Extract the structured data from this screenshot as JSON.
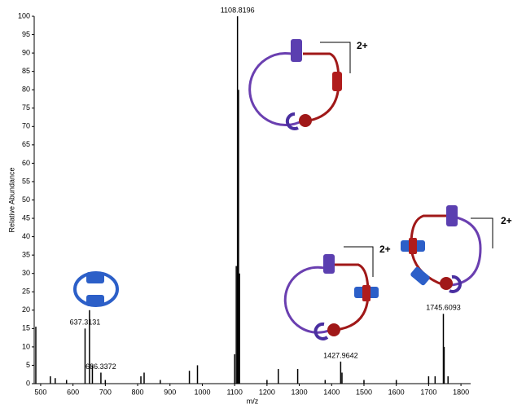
{
  "chart_data": {
    "type": "stick",
    "x_label": "m/z",
    "y_label": "Relative Abundance",
    "xlim": [
      480,
      1830
    ],
    "ylim": [
      0,
      100
    ],
    "xticks": [
      500,
      600,
      700,
      800,
      900,
      1000,
      1100,
      1200,
      1300,
      1400,
      1500,
      1600,
      1700,
      1800
    ],
    "yticks": [
      0,
      5,
      10,
      15,
      20,
      25,
      30,
      35,
      40,
      45,
      50,
      55,
      60,
      65,
      70,
      75,
      80,
      85,
      90,
      95,
      100
    ],
    "color": "#000000",
    "x": [
      485,
      530,
      545,
      580,
      637.3131,
      651,
      660,
      686.3372,
      700,
      810,
      820,
      870,
      960,
      985,
      1100,
      1105,
      1108.8196,
      1112,
      1115,
      1200,
      1235,
      1295,
      1380,
      1427.9642,
      1432,
      1500,
      1600,
      1700,
      1720,
      1745.6093,
      1748,
      1760
    ],
    "values": [
      15.5,
      2,
      1.5,
      1,
      15,
      20,
      5,
      3,
      1,
      2,
      3,
      1,
      3.5,
      5,
      8,
      32,
      100,
      80,
      30,
      1,
      4,
      4,
      1,
      6,
      3,
      1,
      1,
      2,
      2,
      19,
      10,
      2
    ],
    "annotations": [
      {
        "label": "637.3131",
        "x": 637.3131,
        "y": 15
      },
      {
        "label": "686.3372",
        "x": 686.3372,
        "y": 3
      },
      {
        "label": "1108.8196",
        "x": 1108.8196,
        "y": 100
      },
      {
        "label": "1427.9642",
        "x": 1427.9642,
        "y": 6
      },
      {
        "label": "1745.6093",
        "x": 1745.6093,
        "y": 19
      }
    ],
    "charge_labels": [
      "2+",
      "2+",
      "2+"
    ]
  }
}
